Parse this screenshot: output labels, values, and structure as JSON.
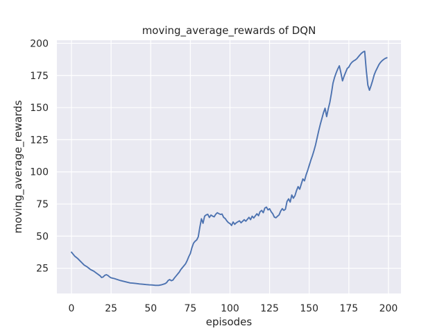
{
  "chart_data": {
    "type": "line",
    "title": "moving_average_rewards of DQN",
    "xlabel": "episodes",
    "ylabel": "moving_average_rewards",
    "legend": false,
    "grid": true,
    "x_ticks": [
      0,
      25,
      50,
      75,
      100,
      125,
      150,
      175,
      200
    ],
    "y_ticks": [
      25,
      50,
      75,
      100,
      125,
      150,
      175,
      200
    ],
    "xlim": [
      -9.2,
      207.9
    ],
    "ylim": [
      5.4,
      202.4
    ],
    "colors": {
      "line": "#4C72B0",
      "plot_background": "#EAEAF2",
      "grid": "#FFFFFF",
      "figure_background": "#FFFFFF",
      "text": "#262626"
    },
    "series": [
      {
        "name": "moving_average_rewards",
        "x": [
          0,
          2,
          4,
          6,
          8,
          10,
          12,
          14,
          16,
          18,
          19,
          20,
          21,
          22,
          23,
          24,
          25,
          27,
          29,
          31,
          33,
          35,
          37,
          39,
          41,
          43,
          45,
          47,
          49,
          51,
          53,
          55,
          57,
          59,
          60,
          61,
          62,
          63,
          64,
          65,
          66,
          67,
          68,
          69,
          70,
          71,
          72,
          73,
          74,
          75,
          76,
          77,
          78,
          79,
          80,
          81,
          82,
          83,
          84,
          85,
          86,
          87,
          88,
          89,
          90,
          91,
          92,
          93,
          94,
          95,
          96,
          97,
          98,
          99,
          100,
          101,
          102,
          103,
          104,
          106,
          107,
          109,
          110,
          112,
          113,
          114,
          115,
          117,
          118,
          119,
          120,
          121,
          122,
          123,
          124,
          125,
          126,
          127,
          128,
          129,
          130,
          131,
          132,
          133,
          134,
          135,
          136,
          137,
          138,
          139,
          140,
          141,
          142,
          143,
          144,
          145,
          146,
          147,
          148,
          149,
          150,
          151,
          152,
          153,
          154,
          155,
          156,
          157,
          158,
          159,
          160,
          161,
          162,
          163,
          164,
          165,
          166,
          167,
          168,
          169,
          170,
          171,
          172,
          173,
          174,
          175,
          176,
          177,
          178,
          179,
          180,
          181,
          182,
          183,
          184,
          185,
          186,
          187,
          188,
          189,
          190,
          191,
          192,
          193,
          194,
          195,
          196,
          197,
          198,
          199
        ],
        "y": [
          37.5,
          34.5,
          32.5,
          30,
          27.5,
          26,
          24,
          22.8,
          21,
          19.2,
          17.8,
          18.2,
          19.5,
          20,
          19.4,
          18.3,
          17.6,
          17,
          16.2,
          15.4,
          14.8,
          14.2,
          13.6,
          13.4,
          13.1,
          12.8,
          12.6,
          12.3,
          12.1,
          12,
          11.7,
          11.7,
          12.2,
          13,
          13.8,
          15.5,
          16.2,
          15.3,
          15.8,
          17.5,
          19,
          20.5,
          22,
          24,
          25.5,
          27,
          28.5,
          31,
          34,
          36.5,
          41,
          44.5,
          46,
          47,
          49.5,
          57,
          63.5,
          60,
          65.5,
          66.5,
          67,
          64.5,
          66.4,
          65.6,
          65,
          67,
          68.2,
          67.5,
          66.9,
          67.2,
          64.6,
          63.7,
          61.9,
          60.5,
          59.8,
          58.3,
          61,
          59.2,
          60.4,
          61.9,
          60.4,
          62.8,
          61.6,
          64.6,
          62.8,
          65.5,
          64.1,
          67.4,
          65.9,
          69,
          70,
          68.2,
          71.8,
          72.6,
          70.4,
          71.3,
          69,
          67.4,
          64.8,
          64.3,
          65.5,
          66.5,
          69.5,
          71.4,
          70,
          71,
          77,
          79,
          76.5,
          82,
          79.5,
          81.5,
          85.5,
          88.5,
          86.5,
          90.5,
          94.5,
          93,
          97.5,
          101,
          105,
          109,
          112.5,
          116.5,
          121,
          126.5,
          132,
          137,
          141.5,
          146,
          149.5,
          143,
          149,
          154,
          161,
          169,
          173.5,
          177,
          180,
          182.5,
          177,
          170.8,
          174.4,
          177.5,
          180.5,
          181.5,
          183.8,
          185.3,
          186.3,
          187,
          188,
          189.5,
          191,
          192.3,
          193.3,
          193.8,
          179,
          167.5,
          163.5,
          167,
          171,
          175.5,
          178.5,
          181,
          183.5,
          185.2,
          186.5,
          187.5,
          188.3,
          188.8
        ]
      }
    ]
  }
}
